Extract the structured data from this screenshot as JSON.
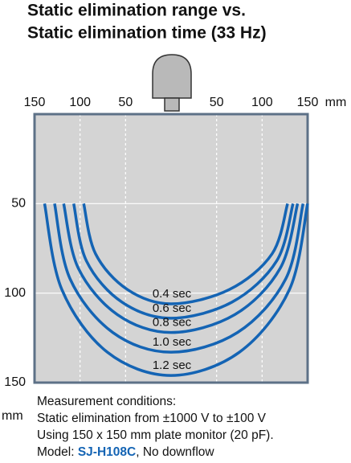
{
  "chart_data": {
    "type": "contour",
    "title": [
      "Static elimination range vs.",
      "Static elimination time (33 Hz)"
    ],
    "x_unit": "mm",
    "y_unit": "mm",
    "xlim": [
      -150,
      150
    ],
    "ylim": [
      0,
      150
    ],
    "y_inverted": true,
    "xticks": [
      {
        "value": -150,
        "label": "150"
      },
      {
        "value": -100,
        "label": "100"
      },
      {
        "value": -50,
        "label": "50"
      },
      {
        "value": 50,
        "label": "50"
      },
      {
        "value": 100,
        "label": "100"
      },
      {
        "value": 150,
        "label": "150"
      }
    ],
    "yticks": [
      50,
      100,
      150
    ],
    "grid": true,
    "series": [
      {
        "name": "0.4 sec",
        "color": "#1464b4",
        "x": [
          -96,
          -83,
          -48,
          0,
          64,
          111,
          128
        ],
        "y": [
          50,
          78,
          98,
          106,
          98,
          78,
          50
        ]
      },
      {
        "name": "0.6 sec",
        "color": "#1464b4",
        "x": [
          -107,
          -93,
          -54,
          0,
          67,
          116,
          134
        ],
        "y": [
          50,
          82,
          105,
          114,
          105,
          82,
          50
        ]
      },
      {
        "name": "0.8 sec",
        "color": "#1464b4",
        "x": [
          -118,
          -102,
          -59,
          0,
          70,
          120,
          139
        ],
        "y": [
          50,
          86,
          112,
          122,
          112,
          86,
          50
        ]
      },
      {
        "name": "1.0 sec",
        "color": "#1464b4",
        "x": [
          -128,
          -111,
          -64,
          0,
          73,
          126,
          145
        ],
        "y": [
          50,
          92,
          122,
          133,
          122,
          92,
          50
        ]
      },
      {
        "name": "1.2 sec",
        "color": "#1464b4",
        "x": [
          -139,
          -120,
          -70,
          0,
          75,
          130,
          150
        ],
        "y": [
          50,
          98,
          133,
          146,
          133,
          98,
          50
        ]
      }
    ],
    "notes": [
      "Measurement conditions:",
      "Static elimination from ±1000 V to ±100 V",
      "Using 150 x 150 mm plate monitor (20 pF)."
    ],
    "model_line": {
      "prefix": "Model: ",
      "model": "SJ-H108C",
      "suffix": ", No downflow"
    }
  }
}
